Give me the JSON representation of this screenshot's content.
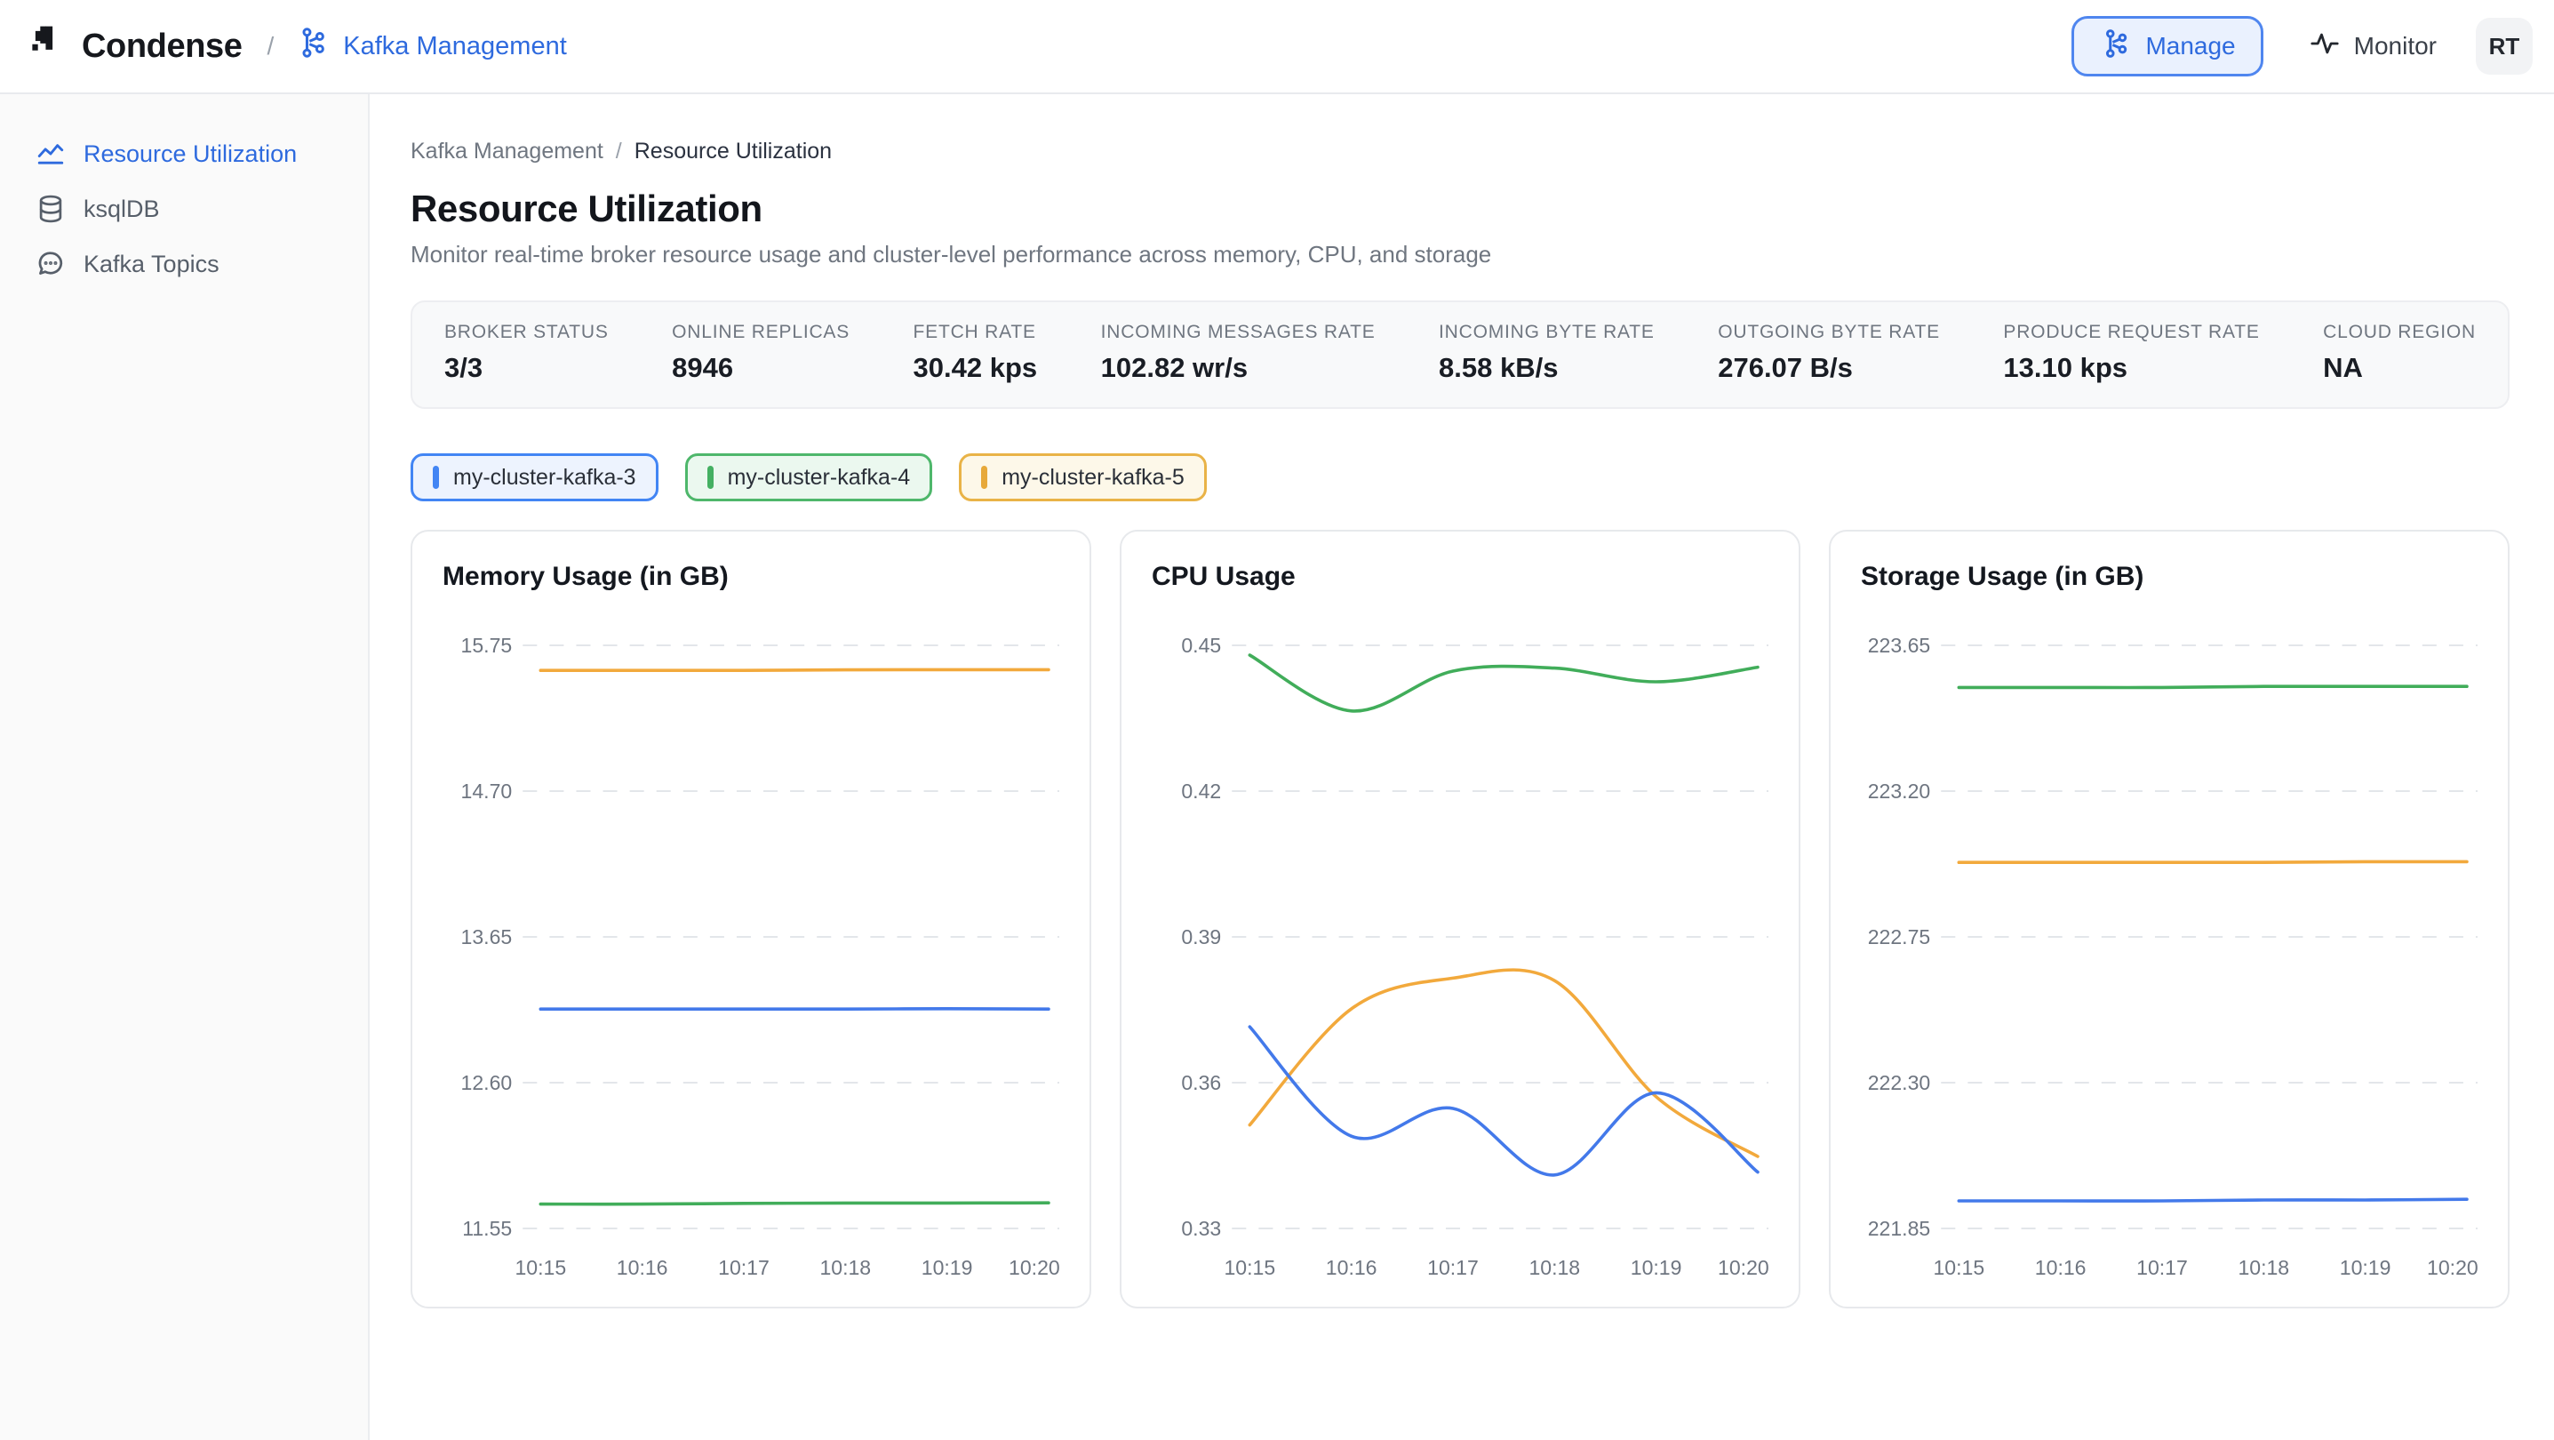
{
  "colors": {
    "accent_blue": "#2e6ade",
    "line_blue": "#4379ea",
    "line_green": "#41ad5a",
    "line_orange": "#f2a93c",
    "grid": "#e3e6ea"
  },
  "header": {
    "logo_text": "Condense",
    "divider": "/",
    "nav_label": "Kafka Management",
    "manage_label": "Manage",
    "monitor_label": "Monitor",
    "avatar_initials": "RT"
  },
  "sidebar": {
    "items": [
      {
        "label": "Resource Utilization",
        "icon": "line-chart-icon",
        "active": true
      },
      {
        "label": "ksqlDB",
        "icon": "database-icon",
        "active": false
      },
      {
        "label": "Kafka Topics",
        "icon": "chat-bubble-icon",
        "active": false
      }
    ]
  },
  "main": {
    "breadcrumb": {
      "parent": "Kafka Management",
      "separator": "/",
      "current": "Resource Utilization"
    },
    "title": "Resource Utilization",
    "subtitle": "Monitor real-time broker resource usage and cluster-level performance across memory, CPU, and storage",
    "stats": [
      {
        "label": "BROKER STATUS",
        "value": "3/3"
      },
      {
        "label": "ONLINE REPLICAS",
        "value": "8946"
      },
      {
        "label": "FETCH RATE",
        "value": "30.42 kps"
      },
      {
        "label": "INCOMING MESSAGES RATE",
        "value": "102.82 wr/s"
      },
      {
        "label": "INCOMING BYTE RATE",
        "value": "8.58 kB/s"
      },
      {
        "label": "OUTGOING BYTE RATE",
        "value": "276.07 B/s"
      },
      {
        "label": "PRODUCE REQUEST RATE",
        "value": "13.10 kps"
      },
      {
        "label": "CLOUD REGION",
        "value": "NA"
      }
    ],
    "legend": [
      {
        "label": "my-cluster-kafka-3",
        "border": "#4285f4",
        "bg": "#edf3fe",
        "bar": "#4285f4"
      },
      {
        "label": "my-cluster-kafka-4",
        "border": "#4eb76b",
        "bg": "#ebf8ef",
        "bar": "#44b062"
      },
      {
        "label": "my-cluster-kafka-5",
        "border": "#e9b347",
        "bg": "#fdf8e9",
        "bar": "#e7a93a"
      }
    ]
  },
  "chart_data": [
    {
      "type": "line",
      "title": "Memory Usage (in GB)",
      "x": [
        "10:15",
        "10:16",
        "10:17",
        "10:18",
        "10:19",
        "10:20"
      ],
      "y_ticks": [
        "15.75",
        "14.70",
        "13.65",
        "12.60",
        "11.55"
      ],
      "ylim": [
        11.55,
        15.75
      ],
      "grid": "dashed-horizontal",
      "legend_position": "none",
      "series": [
        {
          "name": "my-cluster-kafka-5",
          "color": "#f2a93c",
          "values": [
            15.57,
            15.57,
            15.57,
            15.573,
            15.574,
            15.575
          ]
        },
        {
          "name": "my-cluster-kafka-3",
          "color": "#4379ea",
          "values": [
            13.13,
            13.13,
            13.13,
            13.13,
            13.133,
            13.13
          ]
        },
        {
          "name": "my-cluster-kafka-4",
          "color": "#41ad5a",
          "values": [
            11.725,
            11.725,
            11.73,
            11.733,
            11.733,
            11.735
          ]
        }
      ]
    },
    {
      "type": "line",
      "title": "CPU Usage",
      "x": [
        "10:15",
        "10:16",
        "10:17",
        "10:18",
        "10:19",
        "10:20"
      ],
      "y_ticks": [
        "0.45",
        "0.42",
        "0.39",
        "0.36",
        "0.33"
      ],
      "ylim": [
        0.33,
        0.45
      ],
      "grid": "dashed-horizontal",
      "legend_position": "none",
      "series": [
        {
          "name": "my-cluster-kafka-4",
          "color": "#41ad5a",
          "values": [
            0.448,
            0.4365,
            0.4447,
            0.4453,
            0.4425,
            0.4455
          ]
        },
        {
          "name": "my-cluster-kafka-5",
          "color": "#f2a93c",
          "values": [
            0.3513,
            0.3752,
            0.3815,
            0.381,
            0.3571,
            0.3448
          ]
        },
        {
          "name": "my-cluster-kafka-3",
          "color": "#4379ea",
          "values": [
            0.3715,
            0.349,
            0.3547,
            0.341,
            0.3579,
            0.3416
          ]
        }
      ]
    },
    {
      "type": "line",
      "title": "Storage Usage (in GB)",
      "x": [
        "10:15",
        "10:16",
        "10:17",
        "10:18",
        "10:19",
        "10:20"
      ],
      "y_ticks": [
        "223.65",
        "223.20",
        "222.75",
        "222.30",
        "221.85"
      ],
      "ylim": [
        221.85,
        223.65
      ],
      "grid": "dashed-horizontal",
      "legend_position": "none",
      "series": [
        {
          "name": "my-cluster-kafka-4",
          "color": "#41ad5a",
          "values": [
            223.52,
            223.52,
            223.52,
            223.523,
            223.523,
            223.523
          ]
        },
        {
          "name": "my-cluster-kafka-5",
          "color": "#f2a93c",
          "values": [
            222.98,
            222.98,
            222.98,
            222.98,
            222.982,
            222.982
          ]
        },
        {
          "name": "my-cluster-kafka-3",
          "color": "#4379ea",
          "values": [
            221.935,
            221.935,
            221.935,
            221.938,
            221.938,
            221.94
          ]
        }
      ]
    }
  ]
}
